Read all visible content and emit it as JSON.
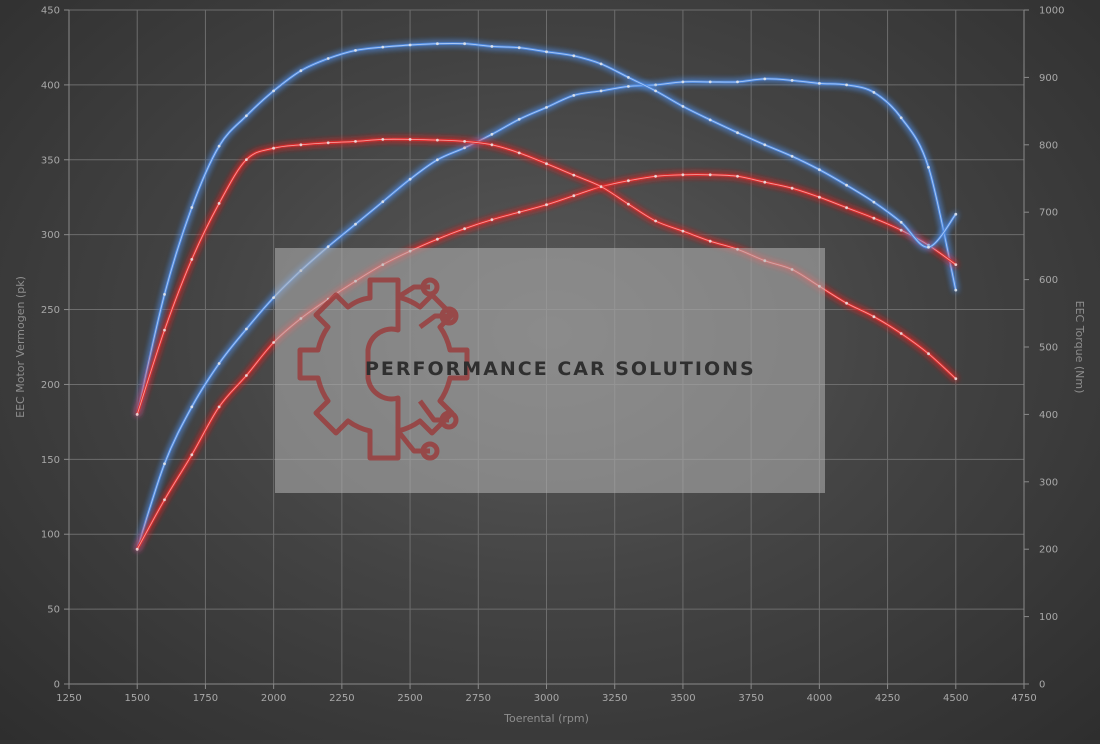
{
  "chart_data": {
    "type": "line",
    "xlabel": "Toerental (rpm)",
    "ylabel_left": "EEC Motor Vermogen (pk)",
    "ylabel_right": "EEC Torque (Nm)",
    "xlim": [
      1250,
      4750
    ],
    "xticks": [
      1250,
      1500,
      1750,
      2000,
      2250,
      2500,
      2750,
      3000,
      3250,
      3500,
      3750,
      4000,
      4250,
      4500,
      4750
    ],
    "ylim_left": [
      0,
      450
    ],
    "yticks_left": [
      0,
      50,
      100,
      150,
      200,
      250,
      300,
      350,
      400,
      450
    ],
    "ylim_right": [
      0,
      1000
    ],
    "yticks_right": [
      0,
      100,
      200,
      300,
      400,
      500,
      600,
      700,
      800,
      900,
      1000
    ],
    "grid": true,
    "series": [
      {
        "axis": "left",
        "color": "#4f8ae0",
        "x": [
          1500,
          1600,
          1700,
          1800,
          1900,
          2000,
          2100,
          2200,
          2300,
          2400,
          2500,
          2600,
          2700,
          2800,
          2900,
          3000,
          3100,
          3200,
          3300,
          3400,
          3500,
          3600,
          3700,
          3800,
          3900,
          4000,
          4100,
          4200,
          4300,
          4400,
          4500
        ],
        "values": [
          90,
          147,
          185,
          214,
          237,
          258,
          276,
          292,
          307,
          322,
          337,
          350,
          358,
          367,
          377,
          385,
          393,
          396,
          399,
          400,
          402,
          402,
          402,
          404,
          403,
          401,
          400,
          395,
          378,
          345,
          263
        ]
      },
      {
        "axis": "left",
        "color": "#e02a2a",
        "x": [
          1500,
          1600,
          1700,
          1800,
          1900,
          2000,
          2100,
          2200,
          2300,
          2400,
          2500,
          2600,
          2700,
          2800,
          2900,
          3000,
          3100,
          3200,
          3300,
          3400,
          3500,
          3600,
          3700,
          3800,
          3900,
          4000,
          4100,
          4200,
          4300,
          4400,
          4500
        ],
        "values": [
          90,
          123,
          153,
          185,
          206,
          228,
          244,
          257,
          269,
          280,
          289,
          297,
          304,
          310,
          315,
          320,
          326,
          332,
          336,
          339,
          340,
          340,
          339,
          335,
          331,
          325,
          318,
          311,
          303,
          293,
          280
        ]
      },
      {
        "axis": "right",
        "color": "#4f8ae0",
        "x": [
          1500,
          1600,
          1700,
          1800,
          1900,
          2000,
          2100,
          2200,
          2300,
          2400,
          2500,
          2600,
          2700,
          2800,
          2900,
          3000,
          3100,
          3200,
          3300,
          3400,
          3500,
          3600,
          3700,
          3800,
          3900,
          4000,
          4100,
          4200,
          4300,
          4400,
          4500
        ],
        "values": [
          400,
          578,
          707,
          798,
          843,
          880,
          910,
          928,
          940,
          945,
          948,
          950,
          950,
          946,
          944,
          938,
          932,
          920,
          900,
          880,
          857,
          837,
          818,
          800,
          783,
          763,
          740,
          715,
          685,
          648,
          697
        ]
      },
      {
        "axis": "right",
        "color": "#e02a2a",
        "x": [
          1500,
          1600,
          1700,
          1800,
          1900,
          2000,
          2100,
          2200,
          2300,
          2400,
          2500,
          2600,
          2700,
          2800,
          2900,
          3000,
          3100,
          3200,
          3300,
          3400,
          3500,
          3600,
          3700,
          3800,
          3900,
          4000,
          4100,
          4200,
          4300,
          4400,
          4500
        ],
        "values": [
          400,
          525,
          630,
          713,
          778,
          795,
          800,
          803,
          805,
          808,
          808,
          807,
          805,
          800,
          788,
          772,
          755,
          738,
          712,
          687,
          672,
          657,
          645,
          628,
          615,
          590,
          565,
          545,
          520,
          490,
          453
        ]
      }
    ]
  },
  "watermark": {
    "text": "PERFORMANCE CAR SOLUTIONS",
    "logo_icon": "gear-circuit-icon",
    "logo_color": "#9c3434",
    "panel_color": "#b4b4b4"
  }
}
